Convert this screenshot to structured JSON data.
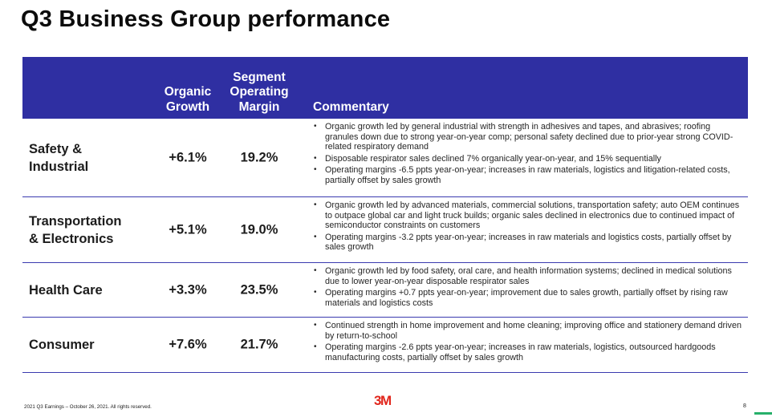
{
  "title": "Q3 Business Group performance",
  "header": {
    "organic_growth": "Organic\nGrowth",
    "segment_margin": "Segment\nOperating\nMargin",
    "commentary": "Commentary"
  },
  "rows": [
    {
      "segment": "Safety &\nIndustrial",
      "growth": "+6.1%",
      "margin": "19.2%",
      "bullets": [
        "Organic growth led by general industrial with strength in adhesives and tapes, and abrasives; roofing granules down due to strong year-on-year comp; personal safety declined due to prior-year strong COVID-related respiratory demand",
        "Disposable respirator sales declined 7% organically year-on-year, and 15% sequentially",
        "Operating margins -6.5 ppts year-on-year; increases in raw materials, logistics and litigation-related costs, partially offset by sales growth"
      ]
    },
    {
      "segment": "Transportation\n& Electronics",
      "growth": "+5.1%",
      "margin": "19.0%",
      "bullets": [
        "Organic growth led by advanced materials, commercial solutions, transportation safety; auto OEM continues to outpace global car and light truck builds; organic sales declined in electronics due to continued impact of semiconductor constraints on customers",
        "Operating margins -3.2 ppts year-on-year; increases in raw materials and logistics costs, partially offset by sales growth"
      ]
    },
    {
      "segment": "Health Care",
      "growth": "+3.3%",
      "margin": "23.5%",
      "bullets": [
        "Organic growth led by food safety, oral care, and health information systems; declined in medical solutions due to lower year-on-year disposable respirator sales",
        "Operating margins +0.7 ppts year-on-year; improvement due to sales growth, partially offset by rising raw materials and logistics costs"
      ]
    },
    {
      "segment": "Consumer",
      "growth": "+7.6%",
      "margin": "21.7%",
      "bullets": [
        "Continued strength in home improvement and home cleaning; improving office and stationery demand driven by return-to-school",
        "Operating margins -2.6 ppts year-on-year; increases in raw materials, logistics, outsourced hardgoods manufacturing costs, partially offset by sales growth"
      ]
    }
  ],
  "footer": {
    "text": "2021 Q3 Earnings – October 26, 2021. All rights reserved.",
    "logo": "3M",
    "page": "8"
  },
  "colors": {
    "header_bg": "#2f2fa2",
    "divider": "#3a3aaf",
    "logo": "#e1261c"
  }
}
